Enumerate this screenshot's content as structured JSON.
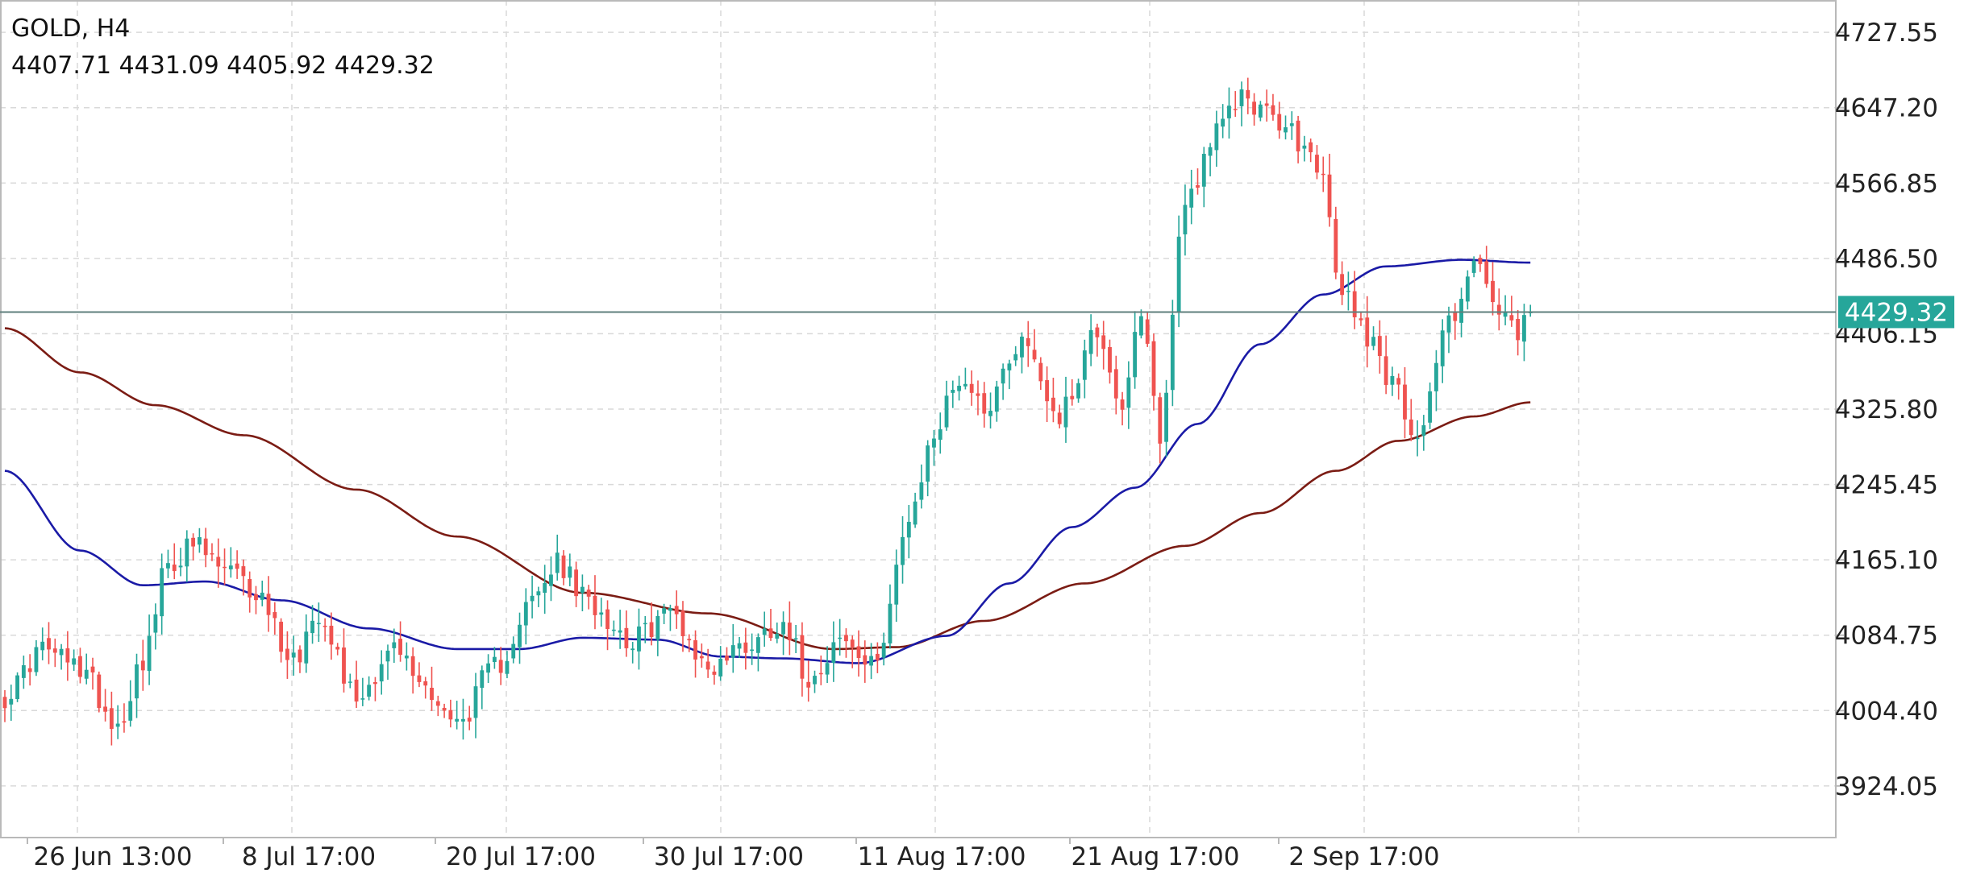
{
  "header": {
    "title": "GOLD, H4",
    "ohlc": "4407.71 4431.09 4405.92 4429.32"
  },
  "colors": {
    "up": "#26a69a",
    "down": "#ef5350",
    "ma_fast": "#1a1aa6",
    "ma_slow": "#7b1c14",
    "price_line": "#5f7f7c",
    "price_label_bg": "#26a69a",
    "grid": "#d9d9d9",
    "axis_text": "#222222"
  },
  "chart_data": {
    "type": "candlestick",
    "symbol": "GOLD",
    "timeframe": "H4",
    "ylim": [
      3869,
      4762
    ],
    "x_tick_labels": [
      {
        "pos": 0.12,
        "label": "26 Jun 13:00"
      },
      {
        "pos": 0.27,
        "label": "8 Jul 17:00"
      },
      {
        "pos": 0.42,
        "label": "20 Jul 17:00"
      },
      {
        "pos": 0.57,
        "label": "30 Jul 17:00"
      },
      {
        "pos": 0.72,
        "label": "11 Aug 17:00"
      },
      {
        "pos": 0.87,
        "label": "21 Aug 17:00"
      },
      {
        "pos": 1.0,
        "label": "2 Sep 17:00"
      }
    ],
    "y_tick_labels": [
      "4727.55",
      "4647.20",
      "4566.85",
      "4486.50",
      "4406.15",
      "4325.80",
      "4245.45",
      "4165.10",
      "4084.75",
      "4004.40",
      "3924.05"
    ],
    "last_price": 4429.32,
    "last_price_label": "4429.32",
    "candle_count": 244,
    "close_anchors": [
      [
        0,
        4020
      ],
      [
        6,
        4070
      ],
      [
        12,
        4050
      ],
      [
        18,
        3990
      ],
      [
        22,
        4060
      ],
      [
        26,
        4160
      ],
      [
        30,
        4180
      ],
      [
        35,
        4155
      ],
      [
        40,
        4130
      ],
      [
        46,
        4060
      ],
      [
        50,
        4110
      ],
      [
        56,
        4020
      ],
      [
        62,
        4070
      ],
      [
        67,
        4030
      ],
      [
        72,
        3990
      ],
      [
        78,
        4050
      ],
      [
        84,
        4120
      ],
      [
        88,
        4160
      ],
      [
        93,
        4120
      ],
      [
        100,
        4080
      ],
      [
        106,
        4110
      ],
      [
        112,
        4050
      ],
      [
        118,
        4075
      ],
      [
        124,
        4100
      ],
      [
        128,
        4040
      ],
      [
        133,
        4080
      ],
      [
        138,
        4050
      ],
      [
        144,
        4200
      ],
      [
        148,
        4300
      ],
      [
        152,
        4360
      ],
      [
        156,
        4330
      ],
      [
        162,
        4400
      ],
      [
        168,
        4320
      ],
      [
        174,
        4410
      ],
      [
        178,
        4330
      ],
      [
        181,
        4420
      ],
      [
        184,
        4300
      ],
      [
        188,
        4550
      ],
      [
        193,
        4620
      ],
      [
        197,
        4660
      ],
      [
        203,
        4630
      ],
      [
        209,
        4590
      ],
      [
        213,
        4450
      ],
      [
        218,
        4400
      ],
      [
        221,
        4350
      ],
      [
        225,
        4300
      ],
      [
        230,
        4420
      ],
      [
        234,
        4480
      ],
      [
        238,
        4430
      ],
      [
        241,
        4400
      ],
      [
        243,
        4429
      ]
    ],
    "ma_fast_anchors": [
      [
        0,
        4260
      ],
      [
        12,
        4175
      ],
      [
        22,
        4138
      ],
      [
        32,
        4142
      ],
      [
        44,
        4122
      ],
      [
        58,
        4092
      ],
      [
        72,
        4070
      ],
      [
        82,
        4070
      ],
      [
        92,
        4082
      ],
      [
        104,
        4080
      ],
      [
        114,
        4062
      ],
      [
        124,
        4060
      ],
      [
        136,
        4055
      ],
      [
        150,
        4084
      ],
      [
        160,
        4140
      ],
      [
        170,
        4200
      ],
      [
        180,
        4242
      ],
      [
        190,
        4310
      ],
      [
        200,
        4395
      ],
      [
        210,
        4448
      ],
      [
        220,
        4478
      ],
      [
        232,
        4485
      ],
      [
        243,
        4482
      ]
    ],
    "ma_slow_anchors": [
      [
        0,
        4412
      ],
      [
        12,
        4365
      ],
      [
        24,
        4330
      ],
      [
        38,
        4298
      ],
      [
        56,
        4240
      ],
      [
        72,
        4190
      ],
      [
        92,
        4130
      ],
      [
        112,
        4108
      ],
      [
        132,
        4070
      ],
      [
        142,
        4072
      ],
      [
        156,
        4100
      ],
      [
        172,
        4140
      ],
      [
        188,
        4180
      ],
      [
        200,
        4215
      ],
      [
        212,
        4260
      ],
      [
        222,
        4292
      ],
      [
        234,
        4318
      ],
      [
        243,
        4333
      ]
    ]
  }
}
